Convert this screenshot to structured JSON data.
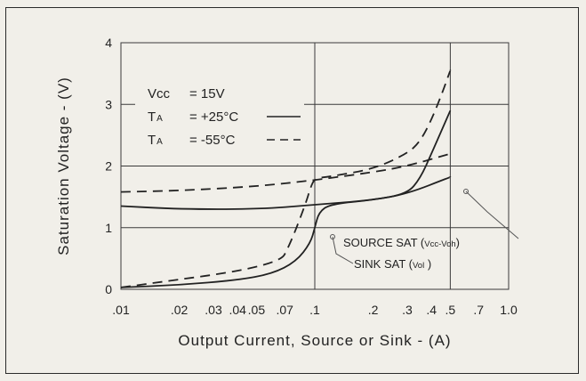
{
  "chart_data": {
    "type": "line",
    "xlabel": "Output Current, Source or Sink - (A)",
    "ylabel": "Saturation Voltage - (V)",
    "x_scale": "log",
    "xlim": [
      0.01,
      1.0
    ],
    "ylim": [
      0,
      4
    ],
    "x_ticks": [
      0.01,
      0.02,
      0.03,
      0.04,
      0.05,
      0.07,
      0.1,
      0.2,
      0.3,
      0.4,
      0.5,
      0.7,
      1.0
    ],
    "x_tick_labels": [
      ".01",
      ".02",
      ".03",
      ".04",
      ".05",
      ".07",
      ".1",
      ".2",
      ".3",
      ".4",
      ".5",
      ".7",
      "1.0"
    ],
    "y_ticks": [
      0,
      1,
      2,
      3,
      4
    ],
    "y_tick_labels": [
      "0",
      "1",
      "2",
      "3",
      "4"
    ],
    "grid": true,
    "legend": {
      "lines": [
        {
          "main": "Vcc",
          "sub": "",
          "text": "= 15V",
          "style": "none"
        },
        {
          "main": "T",
          "sub": "A",
          "text": "= +25°C",
          "style": "solid"
        },
        {
          "main": "T",
          "sub": "A",
          "text": "= -55°C",
          "style": "dashed"
        }
      ]
    },
    "annotations": [
      {
        "text": "SOURCE SAT (Vcc-Voh)",
        "main": "SOURCE SAT (",
        "sub": "Vcc-Voh",
        "end": ")"
      },
      {
        "text": "SINK SAT (Vol)",
        "main": "SINK SAT (",
        "sub": "Vol",
        "end": " )"
      }
    ],
    "series": [
      {
        "style": "solid",
        "x": [
          0.01,
          0.02,
          0.05,
          0.1,
          0.2,
          0.3,
          0.5
        ],
        "y": [
          1.35,
          1.3,
          1.3,
          1.37,
          1.45,
          1.55,
          1.82
        ]
      },
      {
        "style": "dashed",
        "x": [
          0.01,
          0.02,
          0.05,
          0.1,
          0.2,
          0.3,
          0.5
        ],
        "y": [
          1.58,
          1.6,
          1.67,
          1.77,
          1.9,
          2.0,
          2.2
        ]
      },
      {
        "style": "solid",
        "x": [
          0.01,
          0.02,
          0.04,
          0.06,
          0.08,
          0.095,
          0.1,
          0.105,
          0.12,
          0.2,
          0.3,
          0.35,
          0.4,
          0.5
        ],
        "y": [
          0.03,
          0.07,
          0.15,
          0.25,
          0.45,
          0.75,
          1.0,
          1.25,
          1.38,
          1.45,
          1.55,
          1.8,
          2.2,
          2.9
        ]
      },
      {
        "style": "dashed",
        "x": [
          0.01,
          0.065,
          0.075,
          0.09,
          0.095,
          0.1,
          0.12,
          0.2,
          0.3,
          0.35,
          0.4,
          0.45,
          0.5
        ],
        "y": [
          0.03,
          0.38,
          0.75,
          1.4,
          1.65,
          1.8,
          1.83,
          1.95,
          2.2,
          2.4,
          2.75,
          3.15,
          3.55
        ]
      }
    ]
  }
}
